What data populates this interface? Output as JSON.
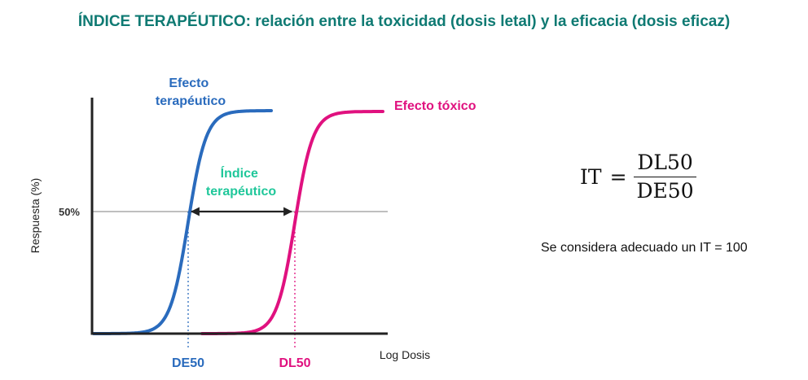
{
  "title": "ÍNDICE TERAPÉUTICO:  relación entre la toxicidad (dosis letal) y la eficacia (dosis eficaz)",
  "formula": {
    "lhs": "IT",
    "equals": "=",
    "numerator": "DL50",
    "denominator": "DE50"
  },
  "note": "Se considera adecuado un IT = 100",
  "colors": {
    "title": "#0f7a73",
    "therapeutic": "#2a6bbd",
    "toxic": "#e0117f",
    "index": "#1fc79a",
    "axis": "#222222",
    "reference": "#999999"
  },
  "chart_data": {
    "type": "line",
    "title": "",
    "xlabel": "Log Dosis",
    "ylabel": "Respuesta (%)",
    "ylim": [
      0,
      100
    ],
    "y_ticks": [
      {
        "value": 50,
        "label": "50%"
      }
    ],
    "reference_line_y": 50,
    "x_markers": [
      {
        "label": "DE50",
        "series": "therapeutic"
      },
      {
        "label": "DL50",
        "series": "toxic"
      }
    ],
    "series": [
      {
        "key": "therapeutic",
        "name_lines": [
          "Efecto",
          "terapéutico"
        ],
        "shape": "sigmoid",
        "color": "#2a6bbd"
      },
      {
        "key": "toxic",
        "name_lines": [
          "Efecto tóxico"
        ],
        "shape": "sigmoid",
        "color": "#e0117f"
      }
    ],
    "annotation": {
      "label_lines": [
        "Índice",
        "terapéutico"
      ],
      "from": "DE50",
      "to": "DL50",
      "at_y": 50,
      "color": "#1fc79a"
    },
    "grid": false
  }
}
